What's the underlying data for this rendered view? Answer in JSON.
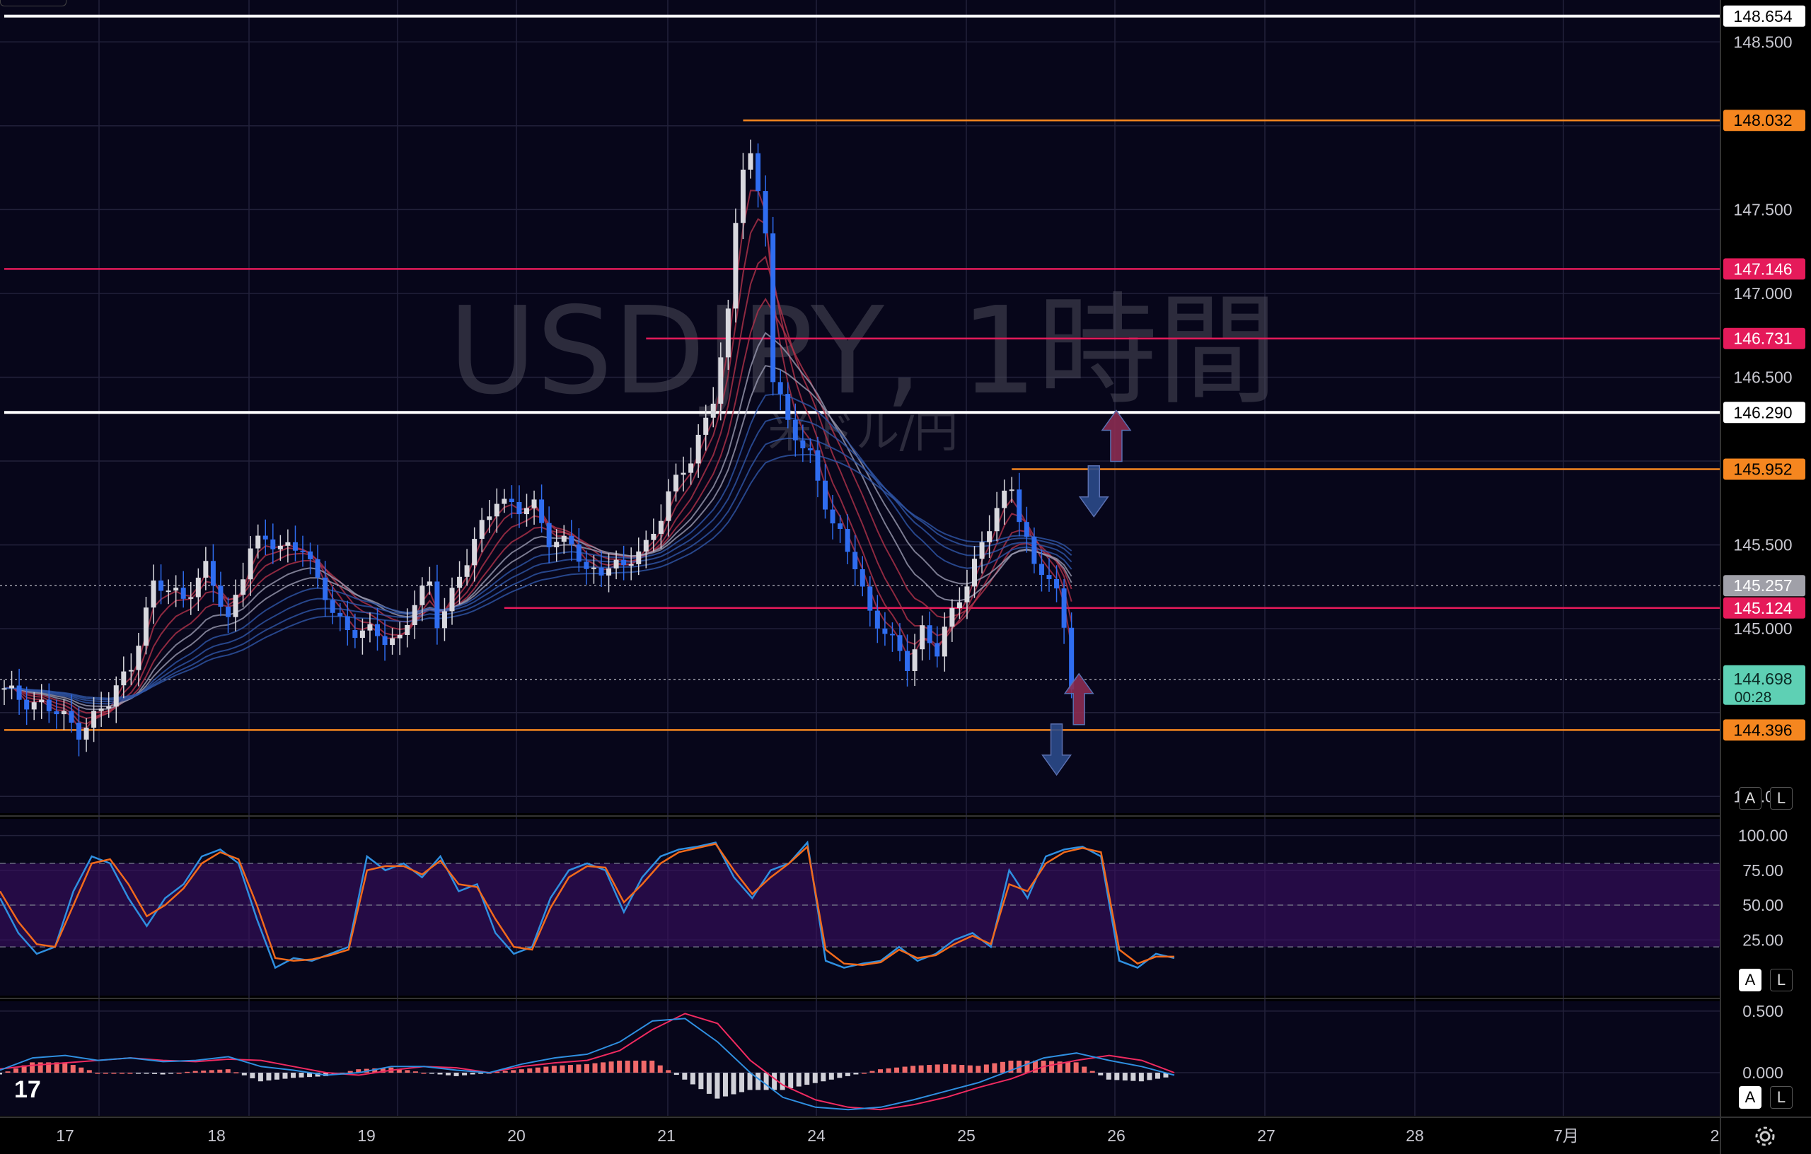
{
  "watermark": {
    "symbol": "USDJPY, 1時間",
    "description": "米ドル/円"
  },
  "colors": {
    "background": "#07061a",
    "grid": "#22213a",
    "white_line": "#ffffff",
    "orange_line": "#f5861f",
    "pink_line": "#e51a5a",
    "up_candle": "#d8d8de",
    "down_candle": "#2f6df0",
    "ribbon_warm": "#b0324a",
    "ribbon_cool": "#2f56a8",
    "stoch_k": "#2f8fe0",
    "stoch_d": "#f26a1b",
    "stoch_band": "#3a0f63",
    "macd_line": "#2f8fe0",
    "signal_line": "#f02a60",
    "hist_pos": "#f06a6a",
    "hist_neg": "#d0d0d8",
    "arrow_up": "#8b2c52",
    "arrow_down": "#2b4a8a"
  },
  "chart_data": [
    {
      "type": "candlestick",
      "title": "USDJPY, 1時間",
      "subtitle": "米ドル/円",
      "ylim": [
        143.9,
        148.75
      ],
      "y_ticks": [
        "148.500",
        "147.500",
        "147.000",
        "146.500",
        "145.500",
        "145.000",
        "144.000"
      ],
      "x_ticks": [
        "17",
        "18",
        "19",
        "20",
        "21",
        "24",
        "25",
        "26",
        "27",
        "28",
        "7月",
        "2"
      ],
      "waypoints": [
        [
          144.62,
          0
        ],
        [
          144.55,
          5
        ],
        [
          144.4,
          10
        ],
        [
          144.55,
          14
        ],
        [
          144.8,
          17
        ],
        [
          145.25,
          20
        ],
        [
          145.2,
          24
        ],
        [
          145.35,
          27
        ],
        [
          145.05,
          30
        ],
        [
          145.5,
          33
        ],
        [
          145.5,
          37
        ],
        [
          145.5,
          40
        ],
        [
          145.25,
          42
        ],
        [
          145.0,
          46
        ],
        [
          144.95,
          50
        ],
        [
          144.95,
          53
        ],
        [
          145.15,
          55
        ],
        [
          145.25,
          57
        ],
        [
          145.05,
          58
        ],
        [
          145.4,
          62
        ],
        [
          145.6,
          64
        ],
        [
          145.8,
          66
        ],
        [
          145.7,
          69
        ],
        [
          145.72,
          71
        ],
        [
          145.55,
          73
        ],
        [
          145.5,
          76
        ],
        [
          145.32,
          78
        ],
        [
          145.4,
          81
        ],
        [
          145.35,
          83
        ],
        [
          145.5,
          86
        ],
        [
          145.8,
          89
        ],
        [
          146.0,
          92
        ],
        [
          146.4,
          95
        ],
        [
          146.85,
          97
        ],
        [
          147.4,
          98
        ],
        [
          147.95,
          99.5
        ],
        [
          147.6,
          101
        ],
        [
          147.4,
          102
        ],
        [
          146.5,
          103
        ],
        [
          146.2,
          105
        ],
        [
          146.05,
          108
        ],
        [
          145.6,
          111
        ],
        [
          145.4,
          114
        ],
        [
          145.1,
          116
        ],
        [
          144.9,
          119
        ],
        [
          144.8,
          121
        ],
        [
          145.0,
          123
        ],
        [
          144.85,
          125
        ],
        [
          145.2,
          128
        ],
        [
          145.4,
          130
        ],
        [
          145.7,
          133
        ],
        [
          145.85,
          135
        ],
        [
          145.55,
          137
        ],
        [
          145.35,
          138
        ],
        [
          145.3,
          140
        ],
        [
          145.2,
          141
        ],
        [
          145.0,
          142
        ],
        [
          144.7,
          143
        ]
      ],
      "last_price": "144.698",
      "countdown": "00:28",
      "current_marker": "145.257",
      "levels": [
        {
          "price": 148.654,
          "label": "148.654",
          "style": "white",
          "from": 0
        },
        {
          "price": 148.032,
          "label": "148.032",
          "style": "orange",
          "from": 99
        },
        {
          "price": 147.146,
          "label": "147.146",
          "style": "pink",
          "from": 0
        },
        {
          "price": 146.731,
          "label": "146.731",
          "style": "pink",
          "from": 86
        },
        {
          "price": 146.29,
          "label": "146.290",
          "style": "white",
          "from": 0
        },
        {
          "price": 145.952,
          "label": "145.952",
          "style": "orange",
          "from": 135
        },
        {
          "price": 145.124,
          "label": "145.124",
          "style": "pink",
          "from": 67
        },
        {
          "price": 144.396,
          "label": "144.396",
          "style": "orange",
          "from": 0
        }
      ],
      "arrows": [
        {
          "dir": "up",
          "index": 149,
          "price": 146.15
        },
        {
          "dir": "down",
          "index": 146,
          "price": 145.82
        },
        {
          "dir": "up",
          "index": 144,
          "price": 144.58
        },
        {
          "dir": "down",
          "index": 141,
          "price": 144.28
        }
      ]
    },
    {
      "type": "line",
      "title": "",
      "ylim": [
        -15,
        112
      ],
      "y_ticks": [
        "100.00",
        "75.00",
        "50.00",
        "25.00"
      ],
      "band": [
        20,
        80
      ],
      "series": [
        {
          "values": [
            55,
            30,
            15,
            20,
            60,
            85,
            80,
            55,
            35,
            55,
            65,
            85,
            90,
            80,
            40,
            5,
            12,
            10,
            15,
            20,
            85,
            75,
            80,
            70,
            85,
            60,
            65,
            30,
            15,
            20,
            55,
            75,
            80,
            75,
            45,
            70,
            85,
            90,
            92,
            95,
            70,
            55,
            75,
            80,
            95,
            10,
            5,
            8,
            10,
            20,
            10,
            15,
            25,
            30,
            20,
            75,
            55,
            85,
            90,
            92,
            85,
            10,
            5,
            15,
            12
          ]
        },
        {
          "values": [
            60,
            38,
            22,
            20,
            50,
            80,
            83,
            65,
            42,
            50,
            62,
            80,
            88,
            83,
            50,
            12,
            10,
            11,
            14,
            18,
            75,
            78,
            78,
            72,
            82,
            65,
            63,
            40,
            20,
            18,
            48,
            70,
            78,
            77,
            52,
            65,
            80,
            88,
            91,
            94,
            75,
            58,
            70,
            80,
            92,
            18,
            8,
            7,
            9,
            18,
            12,
            14,
            22,
            28,
            22,
            65,
            60,
            80,
            88,
            91,
            88,
            18,
            8,
            13,
            13
          ]
        }
      ]
    },
    {
      "type": "bar",
      "title": "",
      "ylim": [
        -0.35,
        0.58
      ],
      "y_ticks": [
        "0.500",
        "0.000"
      ],
      "signal_values": [
        0.03,
        0.06,
        0.08,
        0.1,
        0.12,
        0.1,
        0.09,
        0.11,
        0.1,
        0.05,
        0.0,
        -0.02,
        0.02,
        0.05,
        0.04,
        0.0,
        0.05,
        0.08,
        0.1,
        0.18,
        0.35,
        0.48,
        0.4,
        0.1,
        -0.1,
        -0.22,
        -0.28,
        -0.3,
        -0.26,
        -0.2,
        -0.12,
        -0.05,
        0.05,
        0.1,
        0.14,
        0.1,
        0.0
      ],
      "macd_values": [
        0.02,
        0.12,
        0.14,
        0.1,
        0.12,
        0.09,
        0.1,
        0.13,
        0.05,
        0.02,
        -0.02,
        0.0,
        0.05,
        0.05,
        0.02,
        0.0,
        0.07,
        0.12,
        0.15,
        0.25,
        0.42,
        0.44,
        0.25,
        0.0,
        -0.2,
        -0.28,
        -0.3,
        -0.28,
        -0.22,
        -0.15,
        -0.08,
        0.02,
        0.12,
        0.16,
        0.1,
        0.05,
        -0.02
      ]
    }
  ]
}
